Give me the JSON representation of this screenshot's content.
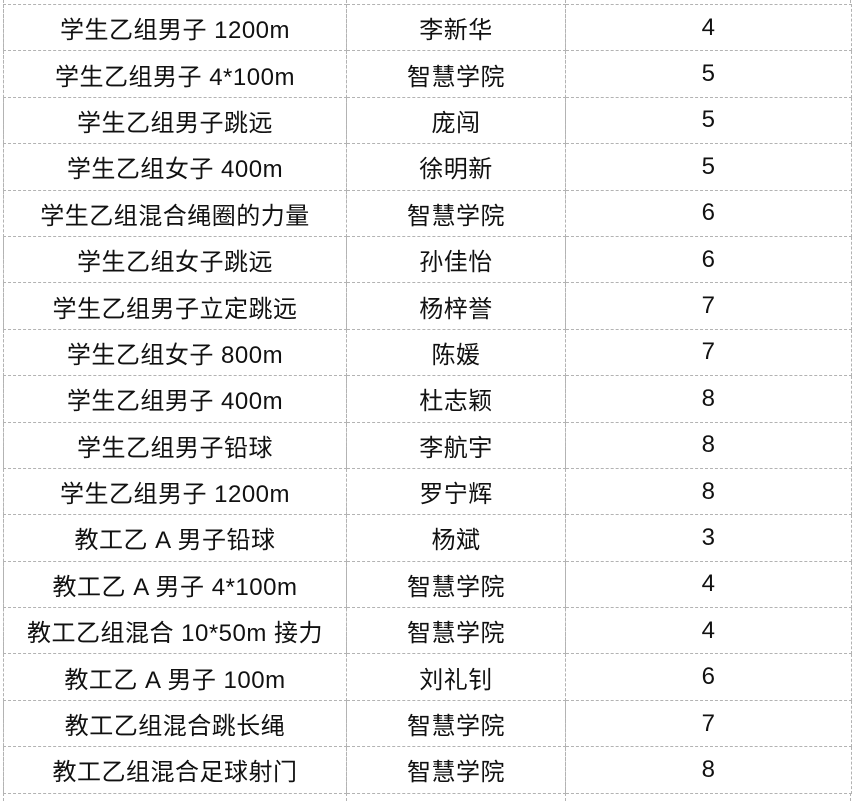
{
  "colors": {
    "grid_line": "#b3b3b3",
    "text": "#111111",
    "background": "#ffffff"
  },
  "table": {
    "rows": [
      {
        "event": "学生乙组男子 1200m",
        "name": "李新华",
        "rank": "4"
      },
      {
        "event": "学生乙组男子 4*100m",
        "name": "智慧学院",
        "rank": "5"
      },
      {
        "event": "学生乙组男子跳远",
        "name": "庞闯",
        "rank": "5"
      },
      {
        "event": "学生乙组女子 400m",
        "name": "徐明新",
        "rank": "5"
      },
      {
        "event": "学生乙组混合绳圈的力量",
        "name": "智慧学院",
        "rank": "6"
      },
      {
        "event": "学生乙组女子跳远",
        "name": "孙佳怡",
        "rank": "6"
      },
      {
        "event": "学生乙组男子立定跳远",
        "name": "杨梓誉",
        "rank": "7"
      },
      {
        "event": "学生乙组女子 800m",
        "name": "陈媛",
        "rank": "7"
      },
      {
        "event": "学生乙组男子 400m",
        "name": "杜志颖",
        "rank": "8"
      },
      {
        "event": "学生乙组男子铅球",
        "name": "李航宇",
        "rank": "8"
      },
      {
        "event": "学生乙组男子 1200m",
        "name": "罗宁辉",
        "rank": "8"
      },
      {
        "event": "教工乙 A 男子铅球",
        "name": "杨斌",
        "rank": "3"
      },
      {
        "event": "教工乙 A 男子 4*100m",
        "name": "智慧学院",
        "rank": "4"
      },
      {
        "event": "教工乙组混合 10*50m 接力",
        "name": "智慧学院",
        "rank": "4"
      },
      {
        "event": "教工乙 A 男子 100m",
        "name": "刘礼钊",
        "rank": "6"
      },
      {
        "event": "教工乙组混合跳长绳",
        "name": "智慧学院",
        "rank": "7"
      },
      {
        "event": "教工乙组混合足球射门",
        "name": "智慧学院",
        "rank": "8"
      }
    ]
  }
}
